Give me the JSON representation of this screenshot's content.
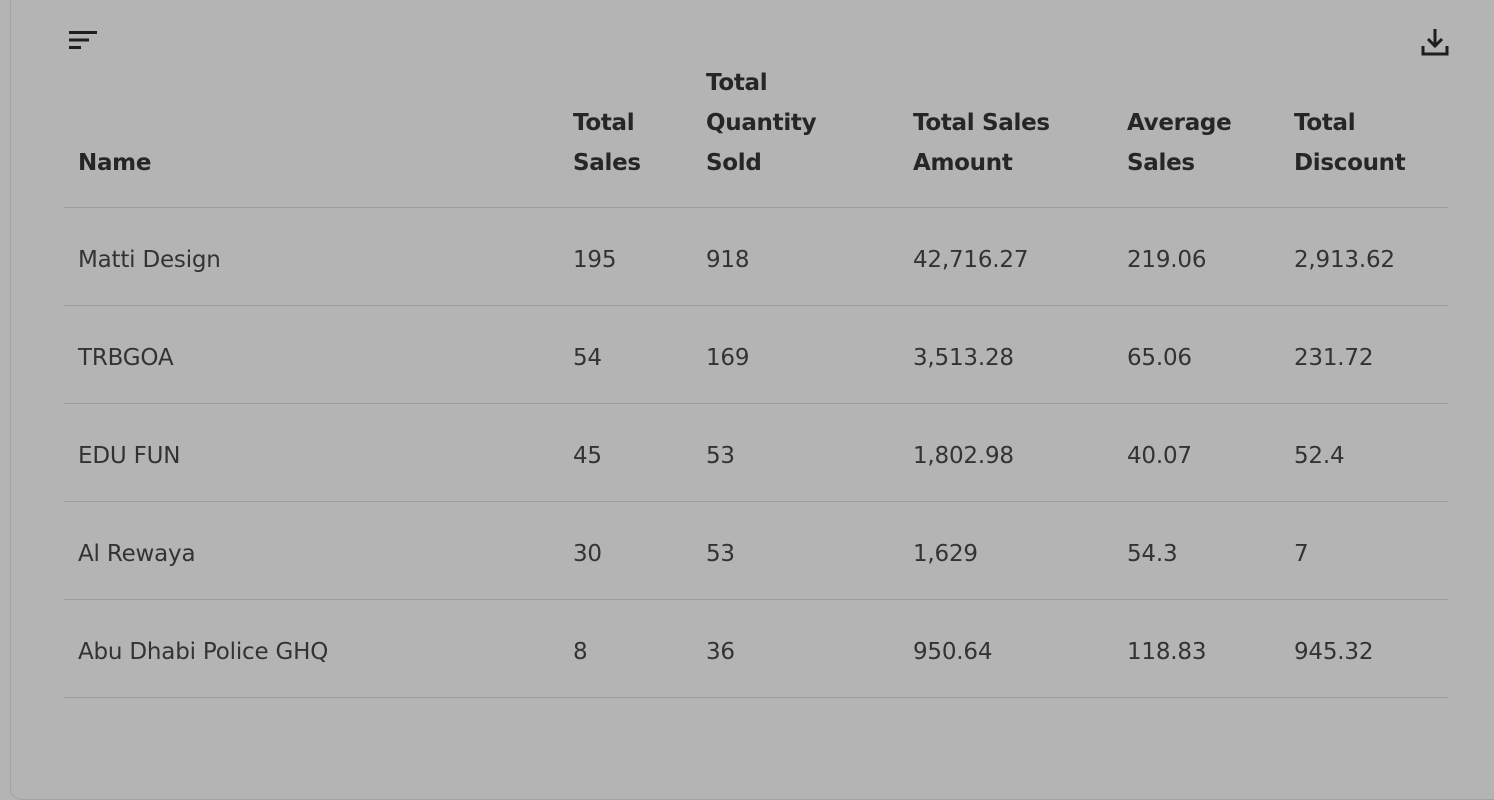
{
  "toolbar": {
    "filter_icon": "filter-list-icon",
    "download_icon": "download-icon"
  },
  "table": {
    "columns": [
      "Name",
      "Total\nSales",
      "Total Quantity\nSold",
      "Total Sales\nAmount",
      "Average\nSales",
      "Total\nDiscount"
    ],
    "rows": [
      [
        "Matti Design",
        "195",
        "918",
        "42,716.27",
        "219.06",
        "2,913.62"
      ],
      [
        "TRBGOA",
        "54",
        "169",
        "3,513.28",
        "65.06",
        "231.72"
      ],
      [
        "EDU FUN",
        "45",
        "53",
        "1,802.98",
        "40.07",
        "52.4"
      ],
      [
        "Al Rewaya",
        "30",
        "53",
        "1,629",
        "54.3",
        "7"
      ],
      [
        "Abu Dhabi Police GHQ",
        "8",
        "36",
        "950.64",
        "118.83",
        "945.32"
      ]
    ]
  },
  "colors": {
    "background": "#b4b4b4",
    "divider": "#9c9c9c",
    "text": "#333333"
  }
}
